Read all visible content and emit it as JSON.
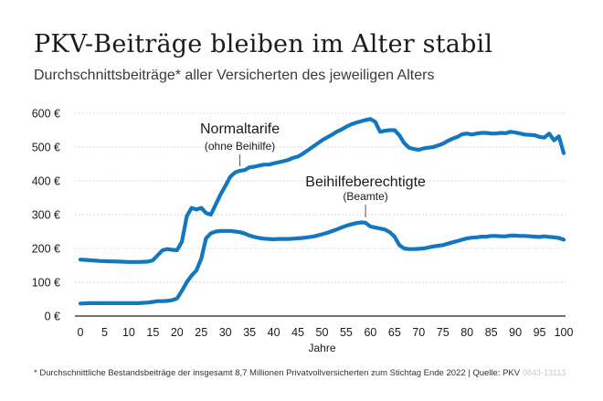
{
  "title": "PKV-Beiträge bleiben im Alter stabil",
  "subtitle": "Durchschnittsbeiträge* aller Versicherten des jeweiligen Alters",
  "footnote": "* Durchschnittliche Bestandsbeiträge der insgesamt 8,7 Millionen Privatvollversicherten zum Stichtag Ende 2022    |    Quelle: PKV",
  "watermark": "0843-13113",
  "colors": {
    "line": "#1277bf",
    "axis": "#222222",
    "grid": "#cccccc",
    "text": "#1a1a1a"
  },
  "chart_data": {
    "type": "line",
    "xlabel": "Jahre",
    "ylabel": "",
    "xlim": [
      0,
      100
    ],
    "ylim": [
      0,
      600
    ],
    "xticks": [
      0,
      5,
      10,
      15,
      20,
      25,
      30,
      35,
      40,
      45,
      50,
      55,
      60,
      65,
      70,
      75,
      80,
      85,
      90,
      95,
      100
    ],
    "yticks": [
      {
        "value": 0,
        "label": "0 €"
      },
      {
        "value": 100,
        "label": "100 €"
      },
      {
        "value": 200,
        "label": "200 €"
      },
      {
        "value": 300,
        "label": "300 €"
      },
      {
        "value": 400,
        "label": "400 €"
      },
      {
        "value": 500,
        "label": "500 €"
      },
      {
        "value": 600,
        "label": "600 €"
      }
    ],
    "grid": true,
    "legend": "none",
    "series": [
      {
        "name": "Normaltarife",
        "note": "(ohne Beihilfe)",
        "x": [
          0,
          2,
          4,
          6,
          8,
          10,
          12,
          14,
          15,
          16,
          17,
          18,
          19,
          20,
          21,
          22,
          23,
          24,
          25,
          26,
          27,
          28,
          29,
          30,
          31,
          32,
          33,
          34,
          35,
          36,
          37,
          38,
          39,
          40,
          41,
          42,
          43,
          44,
          45,
          46,
          47,
          48,
          49,
          50,
          51,
          52,
          53,
          54,
          55,
          56,
          57,
          58,
          59,
          60,
          61,
          62,
          63,
          64,
          65,
          66,
          67,
          68,
          69,
          70,
          71,
          72,
          73,
          74,
          75,
          76,
          77,
          78,
          79,
          80,
          81,
          82,
          83,
          84,
          85,
          86,
          87,
          88,
          89,
          90,
          91,
          92,
          93,
          94,
          95,
          96,
          97,
          98,
          99,
          100
        ],
        "y": [
          167,
          165,
          163,
          162,
          161,
          160,
          160,
          161,
          165,
          180,
          195,
          198,
          196,
          195,
          220,
          295,
          320,
          315,
          320,
          305,
          300,
          330,
          360,
          385,
          412,
          425,
          430,
          432,
          440,
          442,
          445,
          448,
          448,
          452,
          455,
          458,
          462,
          468,
          472,
          480,
          490,
          500,
          510,
          520,
          528,
          536,
          545,
          552,
          560,
          567,
          572,
          576,
          580,
          583,
          575,
          545,
          548,
          550,
          550,
          535,
          512,
          498,
          494,
          492,
          496,
          498,
          500,
          505,
          510,
          518,
          525,
          530,
          538,
          540,
          537,
          540,
          542,
          542,
          540,
          540,
          542,
          541,
          545,
          543,
          540,
          537,
          536,
          535,
          530,
          528,
          540,
          520,
          532,
          482
        ]
      },
      {
        "name": "Beihilfeberechtigte",
        "note": "(Beamte)",
        "x": [
          0,
          2,
          4,
          6,
          8,
          10,
          12,
          14,
          15,
          16,
          17,
          18,
          19,
          20,
          21,
          22,
          23,
          24,
          25,
          26,
          27,
          28,
          29,
          30,
          31,
          32,
          33,
          34,
          35,
          36,
          37,
          38,
          39,
          40,
          41,
          42,
          43,
          44,
          45,
          46,
          47,
          48,
          49,
          50,
          51,
          52,
          53,
          54,
          55,
          56,
          57,
          58,
          59,
          60,
          61,
          62,
          63,
          64,
          65,
          66,
          67,
          68,
          69,
          70,
          71,
          72,
          73,
          74,
          75,
          76,
          77,
          78,
          79,
          80,
          81,
          82,
          83,
          84,
          85,
          86,
          87,
          88,
          89,
          90,
          91,
          92,
          93,
          94,
          95,
          96,
          97,
          98,
          99,
          100
        ],
        "y": [
          37,
          38,
          38,
          38,
          38,
          38,
          38,
          40,
          42,
          44,
          44,
          45,
          47,
          52,
          75,
          100,
          120,
          135,
          170,
          230,
          245,
          250,
          252,
          252,
          252,
          250,
          248,
          244,
          238,
          234,
          231,
          229,
          228,
          227,
          228,
          228,
          228,
          229,
          230,
          231,
          233,
          235,
          238,
          242,
          246,
          251,
          256,
          262,
          267,
          271,
          275,
          277,
          276,
          265,
          262,
          259,
          256,
          248,
          235,
          210,
          200,
          198,
          198,
          199,
          200,
          203,
          206,
          208,
          210,
          214,
          218,
          222,
          226,
          230,
          232,
          233,
          235,
          235,
          237,
          237,
          236,
          236,
          238,
          238,
          237,
          237,
          236,
          235,
          234,
          236,
          234,
          233,
          231,
          226
        ]
      }
    ],
    "annotations": [
      {
        "text": "Normaltarife",
        "sub": "(ohne Beihilfe)"
      },
      {
        "text": "Beihilfeberechtigte",
        "sub": "(Beamte)"
      }
    ]
  }
}
